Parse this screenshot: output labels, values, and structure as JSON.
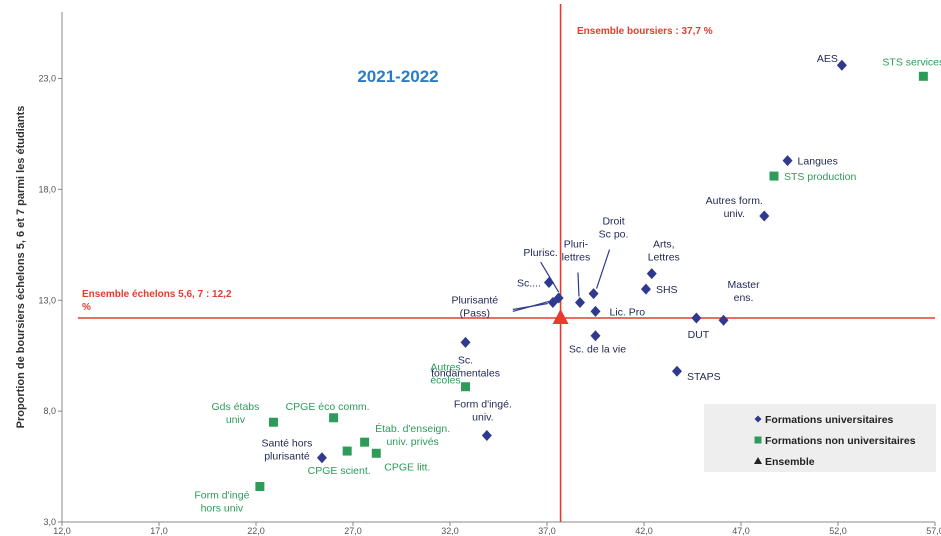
{
  "chart_data": {
    "type": "scatter",
    "title": "2021-2022",
    "xlabel": "",
    "ylabel": "Proportion de boursiers échelons 5, 6 et 7 parmi les étudiants",
    "xlim": [
      12.0,
      57.0
    ],
    "ylim": [
      3.0,
      26.0
    ],
    "xticks": [
      "12,0",
      "17,0",
      "22,0",
      "27,0",
      "32,0",
      "37,0",
      "42,0",
      "47,0",
      "52,0",
      "57,0"
    ],
    "yticks": [
      "3,0",
      "8,0",
      "13,0",
      "18,0",
      "23,0"
    ],
    "grid": false,
    "legend_position": "bottom-right",
    "reference_lines": [
      {
        "axis": "x",
        "value": 37.7,
        "label": "Ensemble boursiers : 37,7 %"
      },
      {
        "axis": "y",
        "value": 12.2,
        "label": "Ensemble échelons 5,6, 7 : 12,2 %"
      }
    ],
    "series": [
      {
        "name": "Formations universitaires",
        "marker": "diamond",
        "color": "#2f3a8f",
        "points": [
          {
            "label": "AES",
            "x": 52.2,
            "y": 23.6
          },
          {
            "label": "Langues",
            "x": 49.4,
            "y": 19.3
          },
          {
            "label": "Autres form. univ.",
            "x": 48.2,
            "y": 16.8
          },
          {
            "label": "Arts, Lettres",
            "x": 42.4,
            "y": 14.2
          },
          {
            "label": "SHS",
            "x": 42.1,
            "y": 13.5
          },
          {
            "label": "Master ens.",
            "x": 46.1,
            "y": 12.1
          },
          {
            "label": "DUT",
            "x": 44.7,
            "y": 12.2
          },
          {
            "label": "Lic. Pro",
            "x": 39.5,
            "y": 12.5
          },
          {
            "label": "Sc. de la vie",
            "x": 39.5,
            "y": 11.4
          },
          {
            "label": "STAPS",
            "x": 43.7,
            "y": 9.8
          },
          {
            "label": "Pluri-lettres",
            "x": 38.7,
            "y": 12.9
          },
          {
            "label": "Droit Sc po.",
            "x": 39.4,
            "y": 13.3
          },
          {
            "label": "Plurisc.",
            "x": 37.6,
            "y": 13.1
          },
          {
            "label": "Sc....",
            "x": 37.1,
            "y": 13.8
          },
          {
            "label": "Plurisanté (Pass)",
            "x": 37.3,
            "y": 12.9
          },
          {
            "label": "Sc. fondamentales",
            "x": 32.8,
            "y": 11.1
          },
          {
            "label": "Form d'ingé. univ.",
            "x": 33.9,
            "y": 6.9
          },
          {
            "label": "Santé hors plurisanté",
            "x": 25.4,
            "y": 5.9
          }
        ]
      },
      {
        "name": "Formations non universitaires",
        "marker": "square",
        "color": "#2e9b5b",
        "points": [
          {
            "label": "STS services",
            "x": 56.4,
            "y": 23.1
          },
          {
            "label": "STS production",
            "x": 48.7,
            "y": 18.6
          },
          {
            "label": "Autres écoles",
            "x": 32.8,
            "y": 9.1
          },
          {
            "label": "Gds étabs univ",
            "x": 22.9,
            "y": 7.5
          },
          {
            "label": "CPGE éco comm.",
            "x": 26.0,
            "y": 7.7
          },
          {
            "label": "Étab. d'enseign. univ. privés",
            "x": 27.6,
            "y": 6.6
          },
          {
            "label": "CPGE scient.",
            "x": 26.7,
            "y": 6.2
          },
          {
            "label": "CPGE litt.",
            "x": 28.2,
            "y": 6.1
          },
          {
            "label": "Form d'ingé hors univ",
            "x": 22.2,
            "y": 4.6
          }
        ]
      },
      {
        "name": "Ensemble",
        "marker": "triangle",
        "color": "#e63b2e",
        "points": [
          {
            "label": "",
            "x": 37.7,
            "y": 12.2
          }
        ]
      }
    ]
  }
}
